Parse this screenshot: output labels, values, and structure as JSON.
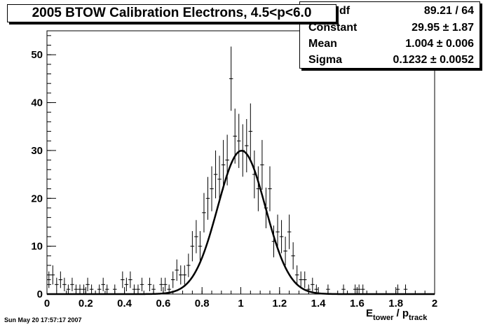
{
  "title": "2005 BTOW Calibration Electrons, 4.5<p<6.0",
  "stats": {
    "rows": [
      {
        "key": "df",
        "value": "89.21 / 64"
      },
      {
        "key": "Constant",
        "value": "29.95 ± 1.87"
      },
      {
        "key": "Mean",
        "value": "1.004 ± 0.006"
      },
      {
        "key": "Sigma",
        "value": "0.1232 ± 0.0052"
      }
    ]
  },
  "footer": "Sun May 20 17:57:17 2007",
  "chart_data": {
    "type": "scatter",
    "title": "2005 BTOW Calibration Electrons, 4.5<p<6.0",
    "xlabel": "E_tower / p_track",
    "xlabel_parts": {
      "main1": "E",
      "sub1": "tower",
      "mid": " / p",
      "sub2": "track"
    },
    "ylabel": "",
    "xlim": [
      0,
      2
    ],
    "ylim": [
      0,
      55
    ],
    "xticks": [
      0,
      0.2,
      0.4,
      0.6,
      0.8,
      1,
      1.2,
      1.4,
      1.6,
      1.8,
      2
    ],
    "xtick_labels": [
      "0",
      "0.2",
      "0.4",
      "0.6",
      "0.8",
      "1",
      "1.2",
      "1.4",
      "1.6",
      "1.8",
      "2"
    ],
    "yticks": [
      0,
      10,
      20,
      30,
      40,
      50
    ],
    "ytick_labels": [
      "0",
      "10",
      "20",
      "30",
      "40",
      "50"
    ],
    "bin_width": 0.02,
    "histogram": {
      "x": [
        0.01,
        0.03,
        0.05,
        0.07,
        0.09,
        0.11,
        0.13,
        0.15,
        0.17,
        0.19,
        0.21,
        0.23,
        0.25,
        0.27,
        0.29,
        0.31,
        0.33,
        0.35,
        0.37,
        0.39,
        0.41,
        0.43,
        0.45,
        0.47,
        0.49,
        0.51,
        0.53,
        0.55,
        0.57,
        0.59,
        0.61,
        0.63,
        0.65,
        0.67,
        0.69,
        0.71,
        0.73,
        0.75,
        0.77,
        0.79,
        0.81,
        0.83,
        0.85,
        0.87,
        0.89,
        0.91,
        0.93,
        0.95,
        0.97,
        0.99,
        1.01,
        1.03,
        1.05,
        1.07,
        1.09,
        1.11,
        1.13,
        1.15,
        1.17,
        1.19,
        1.21,
        1.23,
        1.25,
        1.27,
        1.29,
        1.31,
        1.33,
        1.35,
        1.37,
        1.39,
        1.41,
        1.43,
        1.45,
        1.47,
        1.49,
        1.51,
        1.53,
        1.55,
        1.57,
        1.59,
        1.61,
        1.63,
        1.65,
        1.67,
        1.69,
        1.71,
        1.73,
        1.75,
        1.77,
        1.79,
        1.81,
        1.83,
        1.85,
        1.87,
        1.89,
        1.91,
        1.93,
        1.95,
        1.97,
        1.99
      ],
      "y": [
        3,
        4,
        2,
        3,
        2,
        1,
        2,
        1,
        1,
        1,
        2,
        1,
        0,
        1,
        2,
        1,
        0,
        1,
        0,
        3,
        2,
        3,
        1,
        1,
        2,
        0,
        2,
        1,
        0,
        2,
        2,
        1,
        3,
        5,
        4,
        4,
        6,
        10,
        12,
        10,
        17,
        20,
        22,
        25,
        24,
        27,
        28,
        45,
        33,
        32,
        30,
        31,
        34,
        25,
        22,
        27,
        18,
        22,
        11,
        13,
        12,
        9,
        13,
        8,
        4,
        3,
        3,
        1,
        2,
        1,
        0,
        0,
        1,
        0,
        0,
        0,
        1,
        0,
        0,
        1,
        1,
        1,
        0,
        0,
        0,
        0,
        0,
        0,
        0,
        0,
        1,
        0,
        1,
        0,
        0,
        0,
        0,
        0,
        0,
        0
      ]
    },
    "fit": {
      "type": "gaussian",
      "constant": 29.95,
      "mean": 1.004,
      "sigma": 0.1232
    }
  }
}
